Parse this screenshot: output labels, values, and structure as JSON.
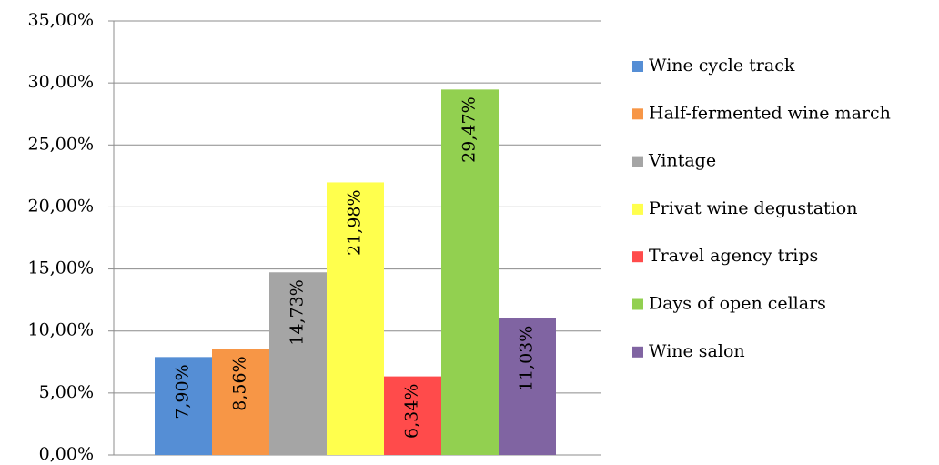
{
  "chart_data": {
    "type": "bar",
    "categories": [
      null
    ],
    "series": [
      {
        "name": "Wine cycle track",
        "color": "#558ed5",
        "values": [
          7.9
        ],
        "value_labels": [
          "7,90%"
        ]
      },
      {
        "name": "Half-fermented wine march",
        "color": "#f79646",
        "values": [
          8.56
        ],
        "value_labels": [
          "8,56%"
        ]
      },
      {
        "name": "Vintage",
        "color": "#a5a5a5",
        "values": [
          14.73
        ],
        "value_labels": [
          "14,73%"
        ]
      },
      {
        "name": "Privat wine degustation",
        "color": "#ffff4d",
        "values": [
          21.98
        ],
        "value_labels": [
          "21,98%"
        ]
      },
      {
        "name": "Travel agency trips",
        "color": "#ff4b4b",
        "values": [
          6.34
        ],
        "value_labels": [
          "6,34%"
        ]
      },
      {
        "name": "Days of open cellars",
        "color": "#92d050",
        "values": [
          29.47
        ],
        "value_labels": [
          "29,47%"
        ]
      },
      {
        "name": "Wine salon",
        "color": "#8064a2",
        "values": [
          11.03
        ],
        "value_labels": [
          "11,03%"
        ]
      }
    ],
    "ylim": [
      0,
      35
    ],
    "yticks": [
      {
        "value": 0,
        "label": "0,00%"
      },
      {
        "value": 5,
        "label": "5,00%"
      },
      {
        "value": 10,
        "label": "10,00%"
      },
      {
        "value": 15,
        "label": "15,00%"
      },
      {
        "value": 20,
        "label": "20,00%"
      },
      {
        "value": 25,
        "label": "25,00%"
      },
      {
        "value": 30,
        "label": "30,00%"
      },
      {
        "value": 35,
        "label": "35,00%"
      }
    ],
    "grid": true,
    "legend": "right"
  }
}
